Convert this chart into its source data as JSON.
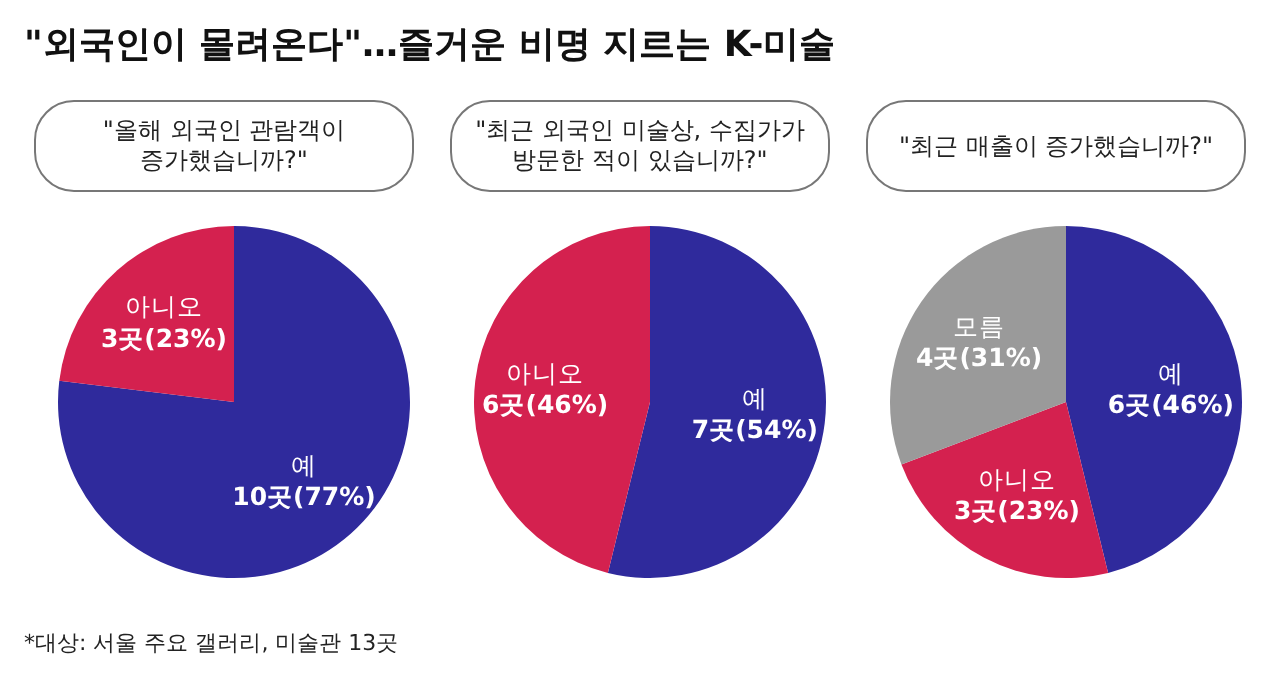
{
  "chart_data": [
    {
      "type": "pie",
      "title": "\"외국인이 몰려온다\"…즐거운 비명 지르는 K-미술",
      "subtitle": "\"올해 외국인 관람객이 증가했습니까?\"",
      "categories": [
        "예",
        "아니오"
      ],
      "values": [
        10,
        3
      ],
      "value_labels": [
        "10곳(77%)",
        "3곳(23%)"
      ],
      "colors": [
        "#2f2a9c",
        "#d4214f"
      ],
      "annotations": [
        "*대상: 서울 주요 갤러리, 미술관 13곳"
      ]
    },
    {
      "type": "pie",
      "subtitle": "\"최근 외국인 미술상, 수집가가 방문한 적이 있습니까?\"",
      "categories": [
        "예",
        "아니오"
      ],
      "values": [
        7,
        6
      ],
      "value_labels": [
        "7곳(54%)",
        "6곳(46%)"
      ],
      "colors": [
        "#2f2a9c",
        "#d4214f"
      ]
    },
    {
      "type": "pie",
      "subtitle": "\"최근 매출이 증가했습니까?\"",
      "categories": [
        "예",
        "아니오",
        "모름"
      ],
      "values": [
        6,
        3,
        4
      ],
      "value_labels": [
        "6곳(46%)",
        "3곳(23%)",
        "4곳(31%)"
      ],
      "colors": [
        "#2f2a9c",
        "#d4214f",
        "#9a9a9a"
      ]
    }
  ]
}
